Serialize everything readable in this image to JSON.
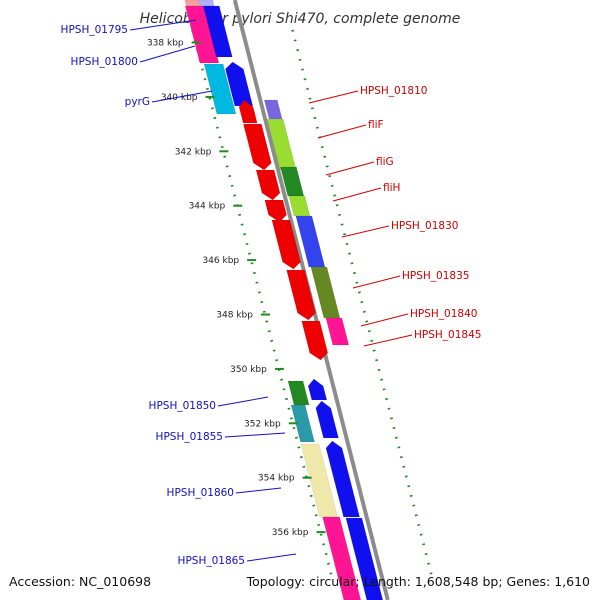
{
  "title": "Helicobacter pylori Shi470, complete genome",
  "footer": {
    "accession": "Accession: NC_010698",
    "summary": "Topology: circular; Length: 1,608,548 bp; Genes: 1,610"
  },
  "colors": {
    "left_label": "#1010c0",
    "right_label": "#cc0000",
    "tick_dots": "#1f8a1f",
    "backbone": "#8c8c8c"
  },
  "ticks": [
    {
      "label": "338 kbp",
      "kbp": 338
    },
    {
      "label": "340 kbp",
      "kbp": 340
    },
    {
      "label": "342 kbp",
      "kbp": 342
    },
    {
      "label": "344 kbp",
      "kbp": 344
    },
    {
      "label": "346 kbp",
      "kbp": 346
    },
    {
      "label": "348 kbp",
      "kbp": 348
    },
    {
      "label": "350 kbp",
      "kbp": 350
    },
    {
      "label": "352 kbp",
      "kbp": 352
    },
    {
      "label": "354 kbp",
      "kbp": 354
    },
    {
      "label": "356 kbp",
      "kbp": 356
    }
  ],
  "left_labels": [
    "HPSH_01795",
    "HPSH_01800",
    "pyrG",
    "HPSH_01850",
    "HPSH_01855",
    "HPSH_01860",
    "HPSH_01865"
  ],
  "right_labels": [
    "HPSH_01810",
    "fliF",
    "fliG",
    "fliH",
    "HPSH_01830",
    "HPSH_01835",
    "HPSH_01840",
    "HPSH_01845"
  ]
}
